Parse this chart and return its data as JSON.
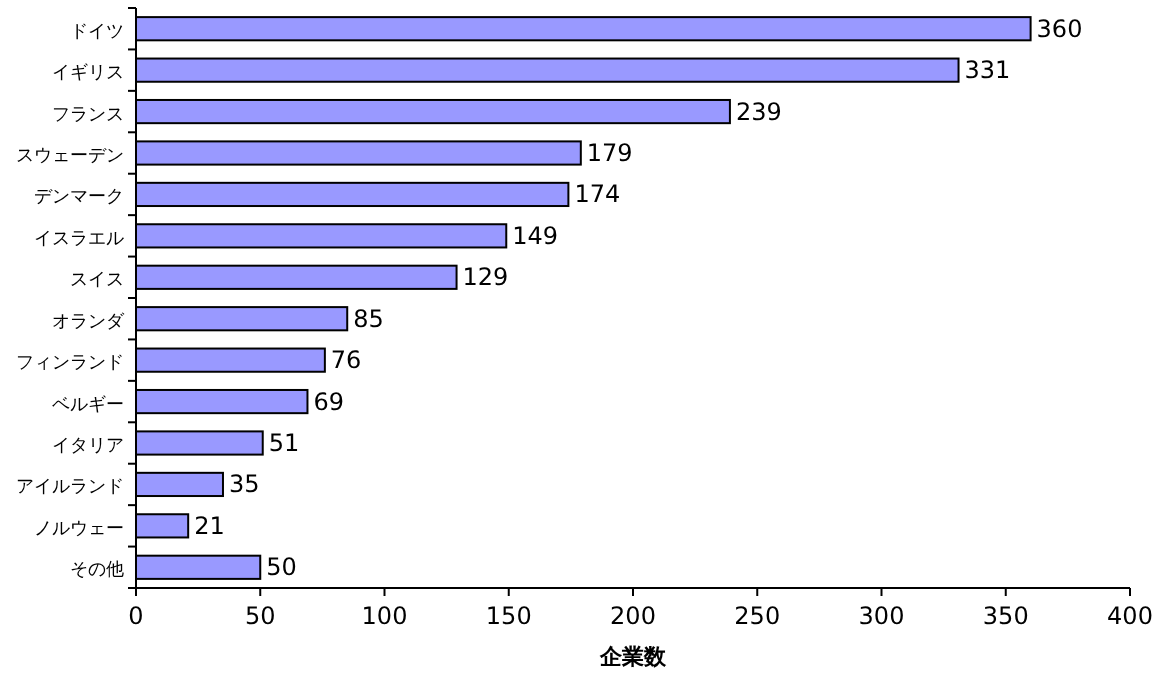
{
  "chart_data": {
    "type": "bar",
    "orientation": "horizontal",
    "xlabel": "企業数",
    "categories": [
      "ドイツ",
      "イギリス",
      "フランス",
      "スウェーデン",
      "デンマーク",
      "イスラエル",
      "スイス",
      "オランダ",
      "フィンランド",
      "ベルギー",
      "イタリア",
      "アイルランド",
      "ノルウェー",
      "その他"
    ],
    "values": [
      360,
      331,
      239,
      179,
      174,
      149,
      129,
      85,
      76,
      69,
      51,
      35,
      21,
      50
    ],
    "color": "#9999ff",
    "xlim": [
      0,
      400
    ],
    "xticks": [
      0,
      50,
      100,
      150,
      200,
      250,
      300,
      350,
      400
    ],
    "data_labels": true,
    "grid": false
  }
}
